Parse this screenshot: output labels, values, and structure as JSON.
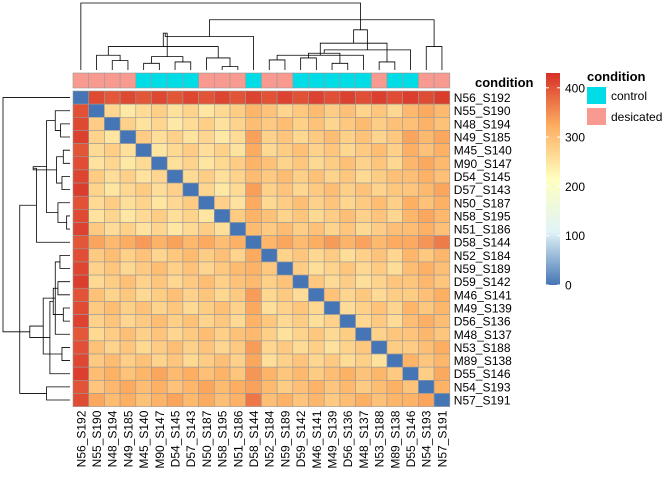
{
  "chart_data": {
    "type": "heatmap",
    "title": "",
    "samples": [
      "N56_S192",
      "N55_S190",
      "N48_S194",
      "N49_S185",
      "M45_S140",
      "M90_S147",
      "D54_S145",
      "D57_S143",
      "N50_S187",
      "N58_S195",
      "N51_S186",
      "D58_S144",
      "N52_S184",
      "N59_S189",
      "D59_S142",
      "M46_S141",
      "M49_S139",
      "D56_S136",
      "M48_S137",
      "N53_S188",
      "M89_S138",
      "D55_S146",
      "N54_S193",
      "N57_S191"
    ],
    "conditions": [
      "desicated",
      "desicated",
      "desicated",
      "desicated",
      "control",
      "control",
      "control",
      "control",
      "desicated",
      "desicated",
      "desicated",
      "control",
      "desicated",
      "desicated",
      "control",
      "control",
      "control",
      "control",
      "control",
      "desicated",
      "control",
      "control",
      "desicated",
      "desicated"
    ],
    "annotation_title": "condition",
    "legend": {
      "title": "condition",
      "entries": [
        {
          "label": "control",
          "color": "#00DDE6"
        },
        {
          "label": "desicated",
          "color": "#F89A8F"
        }
      ]
    },
    "colorbar": {
      "ticks": [
        0,
        100,
        200,
        300,
        400
      ],
      "min": 0,
      "max": 430,
      "colors": [
        "#4575B4",
        "#E0F3F8",
        "#FFFFBF",
        "#FDAE61",
        "#D73027"
      ]
    },
    "dendrogram_leaf_order": [
      0,
      1,
      2,
      3,
      4,
      5,
      6,
      7,
      8,
      9,
      10,
      11,
      12,
      13,
      14,
      15,
      16,
      17,
      18,
      19,
      20,
      21,
      22,
      23
    ]
  }
}
